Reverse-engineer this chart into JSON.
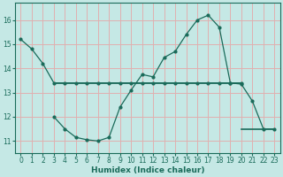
{
  "xlabel": "Humidex (Indice chaleur)",
  "background_color": "#c5e8e5",
  "grid_color_major": "#e0b0b0",
  "line_color": "#1a6b5a",
  "xlim": [
    -0.5,
    23.5
  ],
  "ylim": [
    10.5,
    16.7
  ],
  "yticks": [
    11,
    12,
    13,
    14,
    15,
    16
  ],
  "xticks": [
    0,
    1,
    2,
    3,
    4,
    5,
    6,
    7,
    8,
    9,
    10,
    11,
    12,
    13,
    14,
    15,
    16,
    17,
    18,
    19,
    20,
    21,
    22,
    23
  ],
  "curve1_x": [
    0,
    1,
    2,
    3,
    4,
    5,
    6,
    7,
    8,
    9,
    10,
    11,
    12,
    13,
    14,
    15,
    16,
    17,
    18,
    19,
    20
  ],
  "curve1_y": [
    15.2,
    14.8,
    14.2,
    13.4,
    13.4,
    13.4,
    13.4,
    13.4,
    13.4,
    13.4,
    13.4,
    13.4,
    13.4,
    13.4,
    13.4,
    13.4,
    13.4,
    13.4,
    13.4,
    13.4,
    13.4
  ],
  "curve2_x": [
    3,
    4,
    5,
    6,
    7,
    8,
    9,
    10,
    11,
    12,
    13,
    14,
    15,
    16,
    17,
    18,
    19,
    20,
    21,
    22,
    23
  ],
  "curve2_y": [
    12.0,
    11.5,
    11.15,
    11.05,
    11.0,
    11.15,
    12.4,
    13.1,
    13.75,
    13.65,
    14.45,
    14.7,
    15.4,
    16.0,
    16.2,
    15.7,
    13.4,
    13.35,
    12.65,
    11.5,
    11.5
  ],
  "flat_line_x": [
    3,
    20
  ],
  "flat_line_y": [
    13.4,
    13.4
  ],
  "flat_line2_x": [
    20,
    23
  ],
  "flat_line2_y": [
    11.5,
    11.5
  ]
}
